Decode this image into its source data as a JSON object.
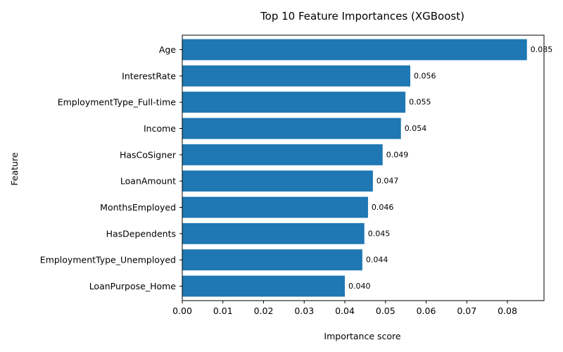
{
  "chart_data": {
    "type": "bar",
    "orientation": "horizontal",
    "title": "Top 10 Feature Importances (XGBoost)",
    "xlabel": "Importance score",
    "ylabel": "Feature",
    "categories": [
      "Age",
      "InterestRate",
      "EmploymentType_Full-time",
      "Income",
      "HasCoSigner",
      "LoanAmount",
      "MonthsEmployed",
      "HasDependents",
      "EmploymentType_Unemployed",
      "LoanPurpose_Home"
    ],
    "values": [
      0.0848,
      0.0561,
      0.0549,
      0.0538,
      0.0493,
      0.0469,
      0.0457,
      0.0448,
      0.0443,
      0.04
    ],
    "data_labels": [
      "0.085",
      "0.056",
      "0.055",
      "0.054",
      "0.049",
      "0.047",
      "0.046",
      "0.045",
      "0.044",
      "0.040"
    ],
    "xticks": [
      "0.00",
      "0.01",
      "0.02",
      "0.03",
      "0.04",
      "0.05",
      "0.06",
      "0.07",
      "0.08"
    ],
    "xlim": [
      0,
      0.089
    ],
    "bar_color": "#1f77b4",
    "grid": false
  }
}
